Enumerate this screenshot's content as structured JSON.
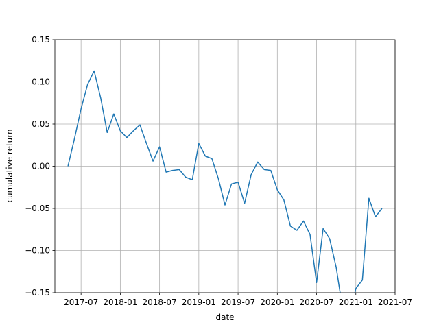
{
  "chart_data": {
    "type": "line",
    "xlabel": "date",
    "ylabel": "cumulative return",
    "x": [
      "2017-05",
      "2017-06",
      "2017-07",
      "2017-08",
      "2017-09",
      "2017-10",
      "2017-11",
      "2017-12",
      "2018-01",
      "2018-02",
      "2018-03",
      "2018-04",
      "2018-05",
      "2018-06",
      "2018-07",
      "2018-08",
      "2018-09",
      "2018-10",
      "2018-11",
      "2018-12",
      "2019-01",
      "2019-02",
      "2019-03",
      "2019-04",
      "2019-05",
      "2019-06",
      "2019-07",
      "2019-08",
      "2019-09",
      "2019-10",
      "2019-11",
      "2019-12",
      "2020-01",
      "2020-02",
      "2020-03",
      "2020-04",
      "2020-05",
      "2020-06",
      "2020-07",
      "2020-08",
      "2020-09",
      "2020-10",
      "2020-11",
      "2020-12",
      "2021-01",
      "2021-02",
      "2021-03",
      "2021-04",
      "2021-05"
    ],
    "series": [
      {
        "name": "cumulative return",
        "color": "#1f77b4",
        "values": [
          0.0,
          0.033,
          0.068,
          0.097,
          0.113,
          0.081,
          0.04,
          0.062,
          0.042,
          0.034,
          0.042,
          0.049,
          0.027,
          0.006,
          0.023,
          -0.007,
          -0.005,
          -0.004,
          -0.013,
          -0.016,
          0.027,
          0.012,
          0.009,
          -0.015,
          -0.046,
          -0.021,
          -0.019,
          -0.044,
          -0.01,
          0.005,
          -0.004,
          -0.005,
          -0.028,
          -0.04,
          -0.071,
          -0.076,
          -0.065,
          -0.081,
          -0.138,
          -0.074,
          -0.086,
          -0.12,
          -0.17,
          -0.18,
          -0.145,
          -0.135,
          -0.038,
          -0.06,
          -0.05
        ]
      }
    ],
    "xlim": [
      "2017-03",
      "2021-07"
    ],
    "xticks": [
      "2017-07",
      "2018-01",
      "2018-07",
      "2019-01",
      "2019-07",
      "2020-01",
      "2020-07",
      "2021-01",
      "2021-07"
    ],
    "ylim": [
      -0.15,
      0.15
    ],
    "yticks": [
      {
        "value": -0.15,
        "label": "−0.15"
      },
      {
        "value": -0.1,
        "label": "−0.10"
      },
      {
        "value": -0.05,
        "label": "−0.05"
      },
      {
        "value": 0,
        "label": "0.00"
      },
      {
        "value": 0.05,
        "label": "0.05"
      },
      {
        "value": 0.1,
        "label": "0.10"
      },
      0.15
    ],
    "grid": true
  }
}
